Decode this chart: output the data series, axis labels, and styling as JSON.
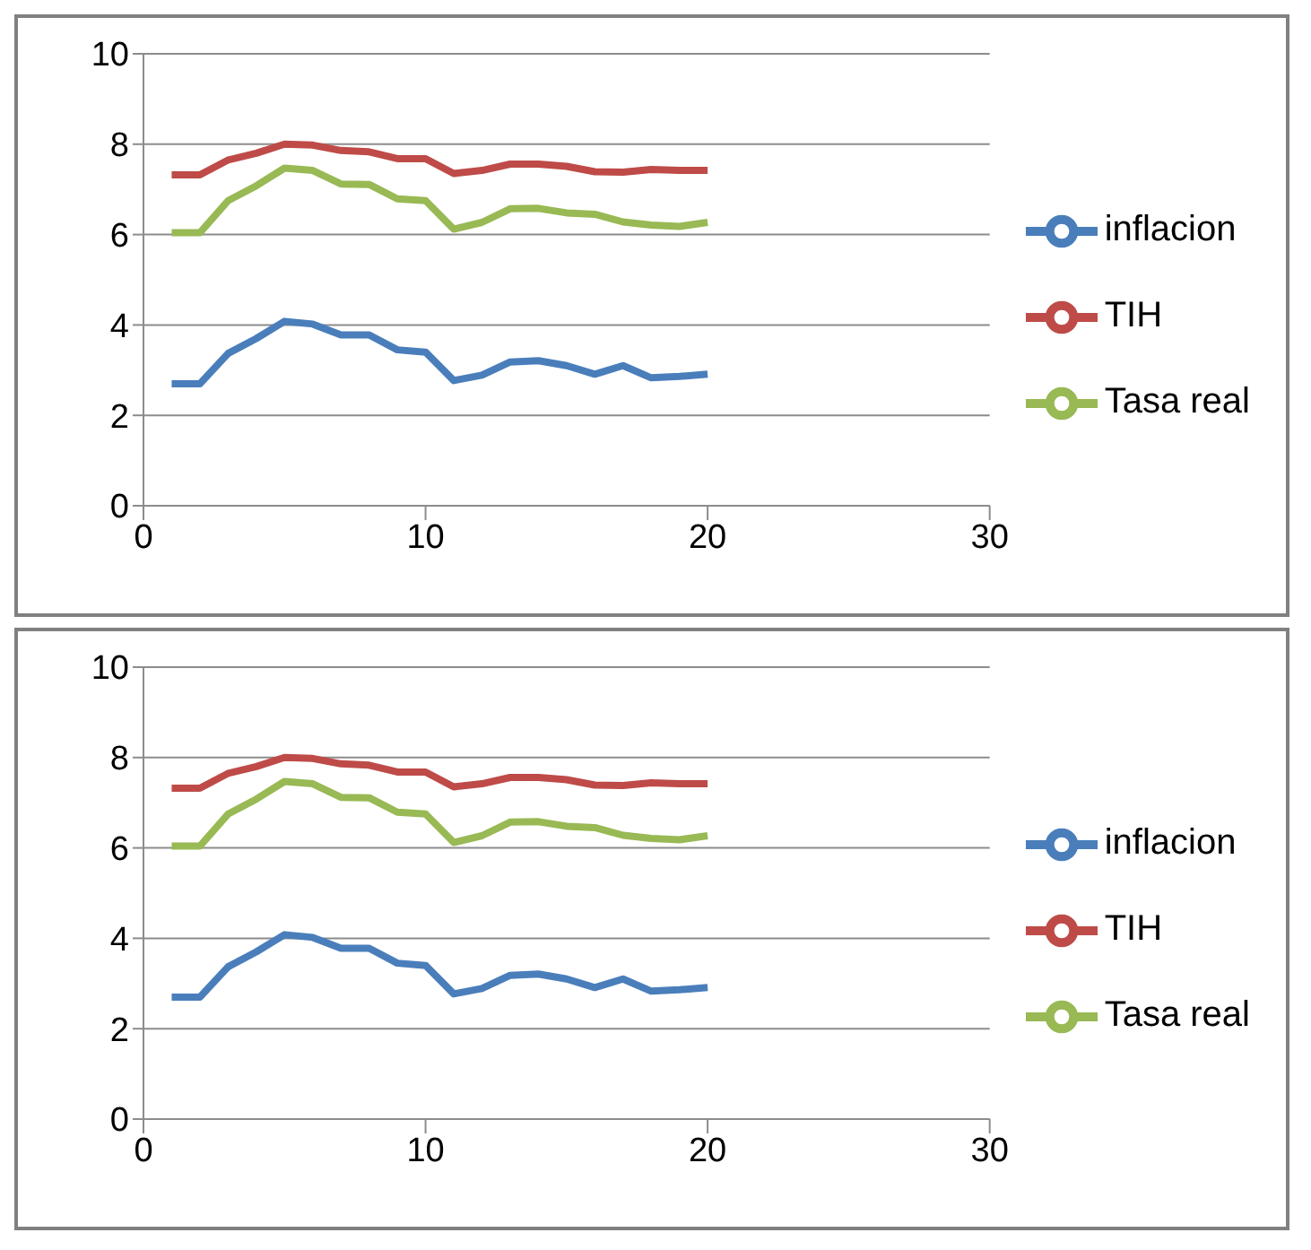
{
  "chart_data": [
    {
      "type": "line",
      "x": [
        1,
        2,
        3,
        4,
        5,
        6,
        7,
        8,
        9,
        10,
        11,
        12,
        13,
        14,
        15,
        16,
        17,
        18,
        19,
        20
      ],
      "xlim": [
        0,
        30
      ],
      "xticks": [
        0,
        10,
        20,
        30
      ],
      "ylim": [
        0,
        10
      ],
      "yticks": [
        0,
        2,
        4,
        6,
        8,
        10
      ],
      "grid": "y",
      "legend": "right",
      "marker": "none",
      "line_style": "solid",
      "series": [
        {
          "name": "inflacion",
          "color": "#4a7ebb",
          "values": [
            2.7,
            2.7,
            3.37,
            3.7,
            4.08,
            4.02,
            3.78,
            3.78,
            3.45,
            3.4,
            2.77,
            2.89,
            3.18,
            3.21,
            3.1,
            2.91,
            3.1,
            2.83,
            2.86,
            2.91
          ]
        },
        {
          "name": "TIH",
          "color": "#be4b48",
          "values": [
            7.32,
            7.32,
            7.65,
            7.8,
            8.0,
            7.98,
            7.86,
            7.83,
            7.68,
            7.68,
            7.35,
            7.42,
            7.56,
            7.56,
            7.51,
            7.39,
            7.38,
            7.44,
            7.42,
            7.42
          ]
        },
        {
          "name": "Tasa real",
          "color": "#98b954",
          "values": [
            6.04,
            6.04,
            6.75,
            7.08,
            7.47,
            7.42,
            7.12,
            7.11,
            6.79,
            6.75,
            6.12,
            6.27,
            6.57,
            6.58,
            6.48,
            6.45,
            6.28,
            6.21,
            6.18,
            6.27
          ]
        }
      ]
    },
    {
      "type": "line",
      "x": [
        1,
        2,
        3,
        4,
        5,
        6,
        7,
        8,
        9,
        10,
        11,
        12,
        13,
        14,
        15,
        16,
        17,
        18,
        19,
        20
      ],
      "xlim": [
        0,
        30
      ],
      "xticks": [
        0,
        10,
        20,
        30
      ],
      "ylim": [
        0,
        10
      ],
      "yticks": [
        0,
        2,
        4,
        6,
        8,
        10
      ],
      "grid": "y",
      "legend": "right",
      "marker": "none",
      "line_style": "solid",
      "series": [
        {
          "name": "inflacion",
          "color": "#4a7ebb",
          "values": [
            2.7,
            2.7,
            3.37,
            3.7,
            4.08,
            4.02,
            3.78,
            3.78,
            3.45,
            3.4,
            2.77,
            2.89,
            3.18,
            3.21,
            3.1,
            2.91,
            3.1,
            2.83,
            2.86,
            2.91
          ]
        },
        {
          "name": "TIH",
          "color": "#be4b48",
          "values": [
            7.32,
            7.32,
            7.65,
            7.8,
            8.0,
            7.98,
            7.86,
            7.83,
            7.68,
            7.68,
            7.35,
            7.42,
            7.56,
            7.56,
            7.51,
            7.39,
            7.38,
            7.44,
            7.42,
            7.42
          ]
        },
        {
          "name": "Tasa real",
          "color": "#98b954",
          "values": [
            6.04,
            6.04,
            6.75,
            7.08,
            7.47,
            7.42,
            7.12,
            7.11,
            6.79,
            6.75,
            6.12,
            6.27,
            6.57,
            6.58,
            6.48,
            6.45,
            6.28,
            6.21,
            6.18,
            6.27
          ]
        }
      ]
    }
  ]
}
